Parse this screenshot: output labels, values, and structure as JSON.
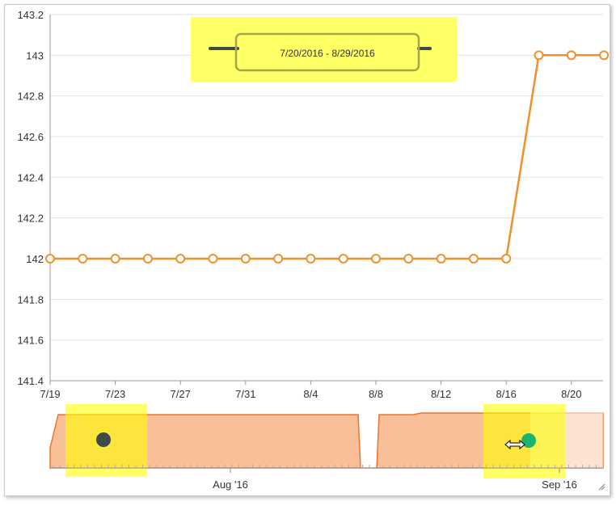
{
  "range_label": "7/20/2016 - 8/29/2016",
  "colors": {
    "series": "#f0902a",
    "highlight": "#ffff66",
    "grid": "#e3e3e3",
    "navigator_fill": "#f9b98f",
    "navigator_line": "#e6661a",
    "handle_left": "#3d4a45",
    "handle_right": "#1db36b"
  },
  "chart_data": {
    "type": "line",
    "title": "",
    "xlabel": "",
    "ylabel": "",
    "ylim": [
      141.4,
      143.2
    ],
    "yticks": [
      "143.2",
      "143",
      "142.8",
      "142.6",
      "142.4",
      "142.2",
      "142",
      "141.8",
      "141.6",
      "141.4"
    ],
    "xticks": [
      "7/19",
      "7/23",
      "7/27",
      "7/31",
      "8/4",
      "8/8",
      "8/12",
      "8/16",
      "8/20"
    ],
    "grid": true,
    "series": [
      {
        "x": [
          "2016-07-19",
          "2016-07-21",
          "2016-07-23",
          "2016-07-25",
          "2016-07-27",
          "2016-07-29",
          "2016-07-31",
          "2016-08-02",
          "2016-08-04",
          "2016-08-06",
          "2016-08-08",
          "2016-08-10",
          "2016-08-12",
          "2016-08-14",
          "2016-08-16",
          "2016-08-18",
          "2016-08-20",
          "2016-08-22"
        ],
        "y": [
          142,
          142,
          142,
          142,
          142,
          142,
          142,
          142,
          142,
          142,
          142,
          142,
          142,
          142,
          142,
          143,
          143,
          143
        ]
      }
    ],
    "navigator": {
      "labels": [
        "Aug '16",
        "Sep '16"
      ],
      "selected_range": [
        "2016-07-20",
        "2016-08-29"
      ]
    }
  }
}
